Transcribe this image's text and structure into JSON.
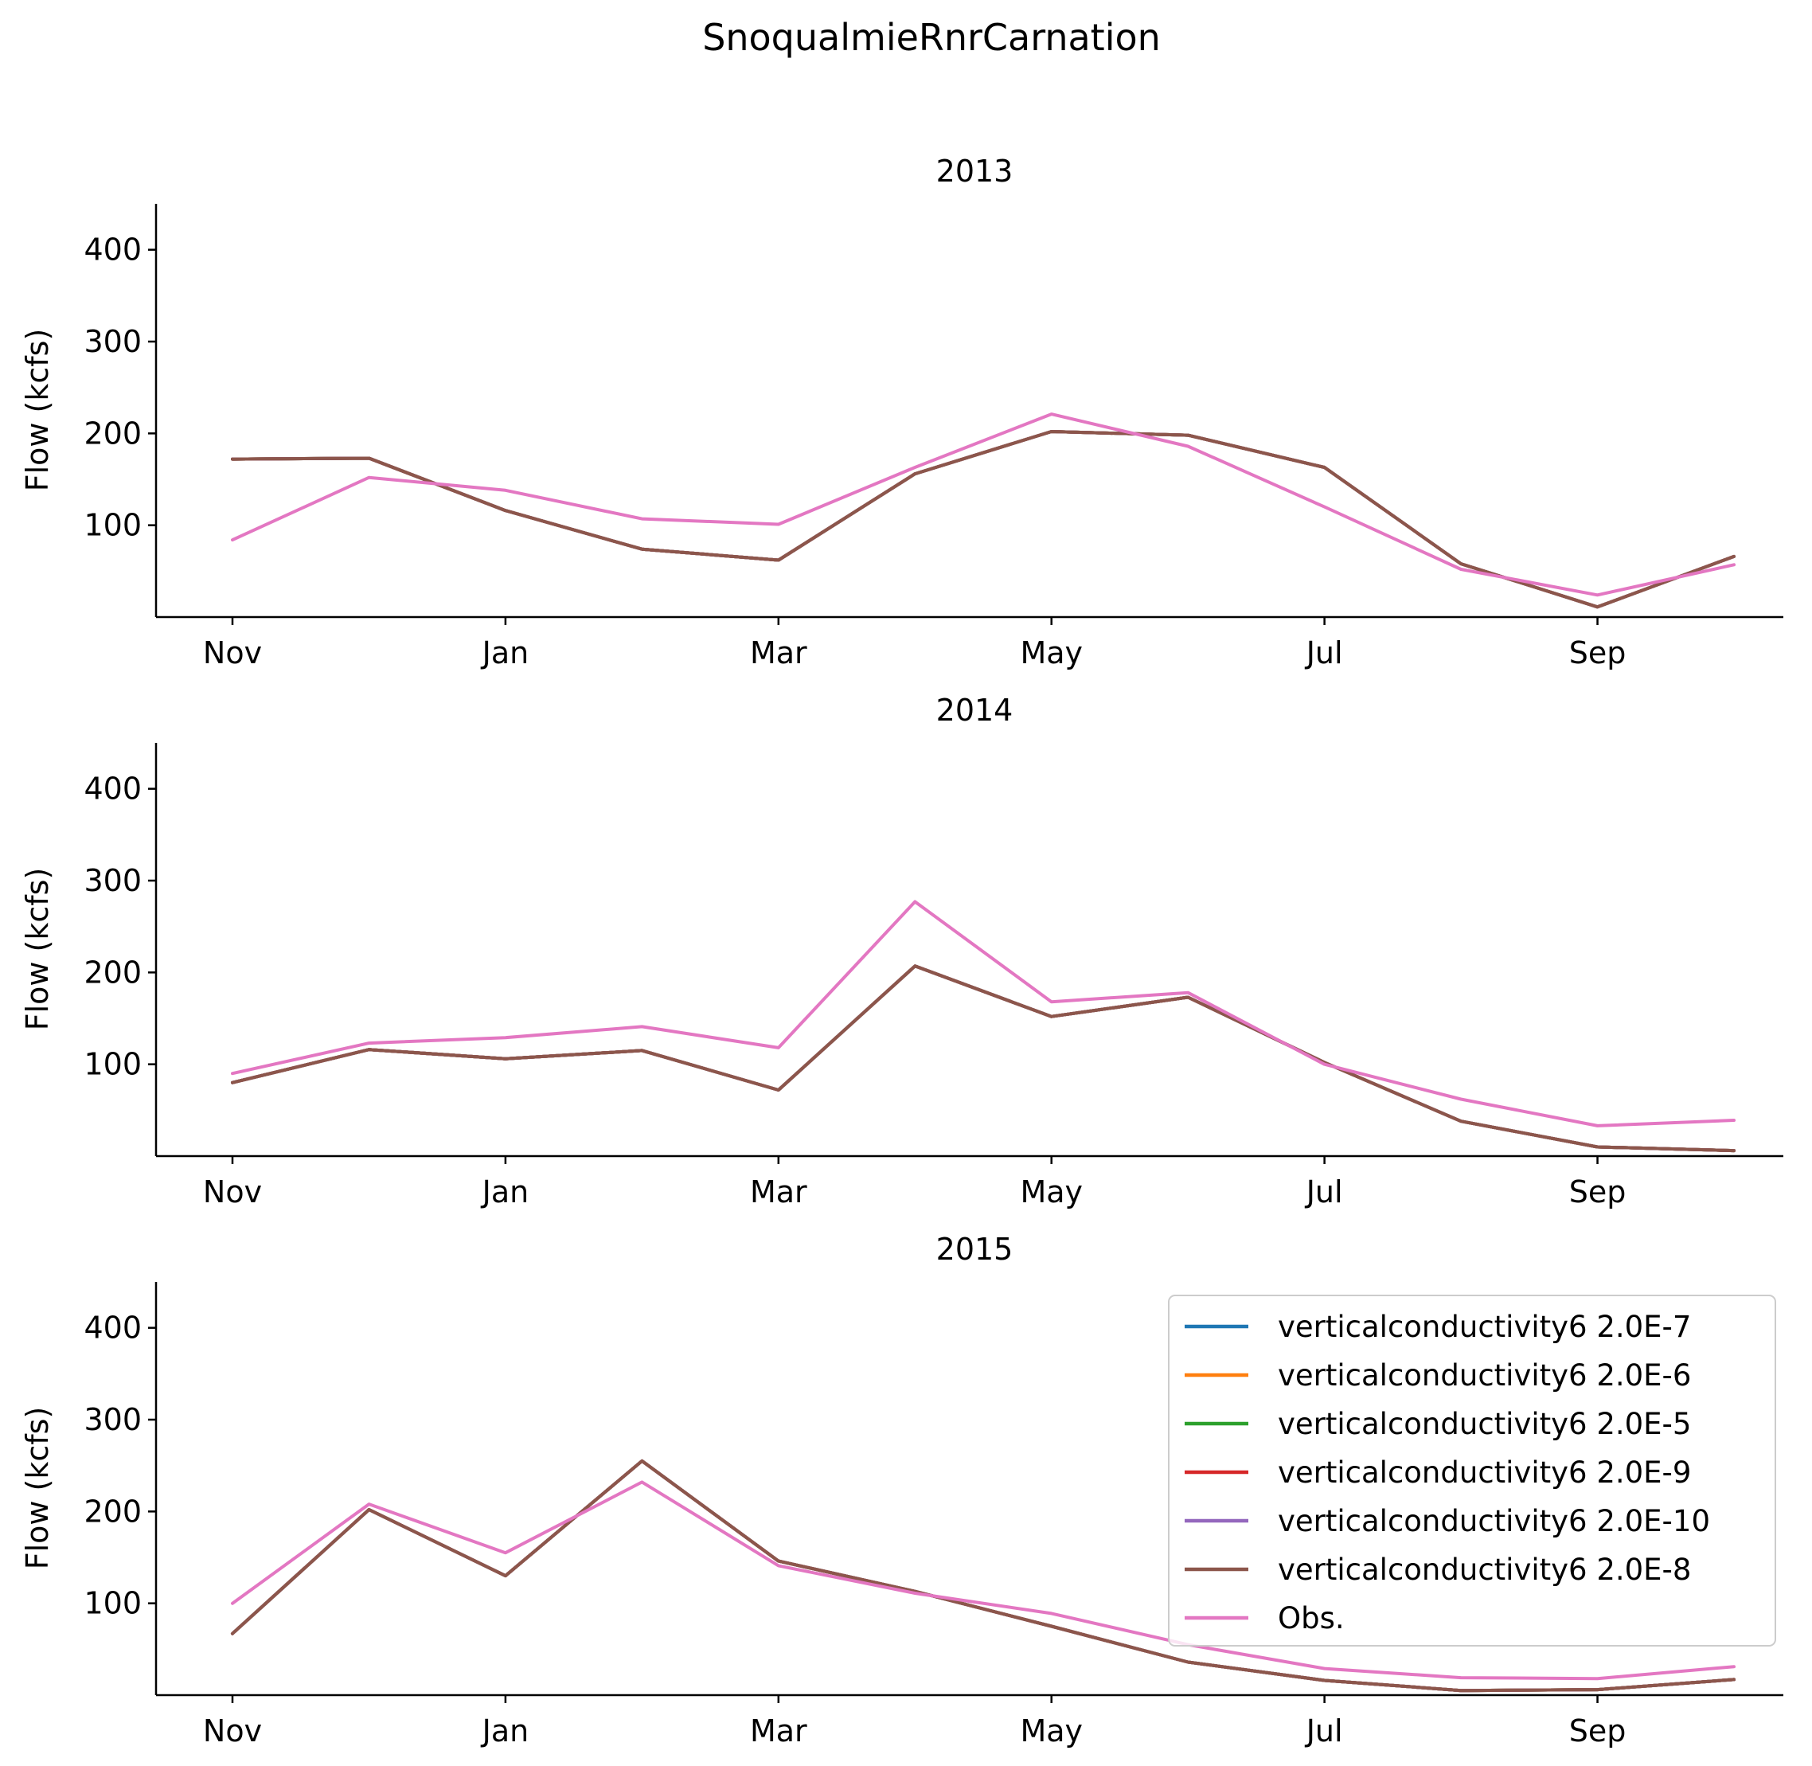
{
  "chart_data": {
    "title": "SnoqualmieRnrCarnation",
    "months": [
      "2012-11-01",
      "2012-12-01",
      "2013-01-01",
      "2013-02-01",
      "2013-03-01",
      "2013-04-01",
      "2013-05-01",
      "2013-06-01",
      "2013-07-01",
      "2013-08-01",
      "2013-09-01",
      "2013-10-01"
    ],
    "ylim": [
      0,
      450
    ],
    "yticks": [
      100,
      200,
      300,
      400
    ],
    "xticks": [
      "Nov",
      "Jan",
      "Mar",
      "May",
      "Jul",
      "Sep"
    ],
    "ylabel": "Flow (kcfs)",
    "legend": {
      "placement": "upper right",
      "entries": [
        {
          "name": "verticalconductivity6 2.0E-7",
          "color": "#1f77b4"
        },
        {
          "name": "verticalconductivity6 2.0E-6",
          "color": "#ff7f0e"
        },
        {
          "name": "verticalconductivity6 2.0E-5",
          "color": "#2ca02c"
        },
        {
          "name": "verticalconductivity6 2.0E-9",
          "color": "#d62728"
        },
        {
          "name": "verticalconductivity6 2.0E-10",
          "color": "#9467bd"
        },
        {
          "name": "verticalconductivity6 2.0E-8",
          "color": "#8c564b"
        },
        {
          "name": "Obs.",
          "color": "#e377c2"
        }
      ]
    },
    "panels": [
      {
        "title": "2013",
        "type": "line",
        "series": [
          {
            "name": "verticalconductivity6 2.0E-7",
            "color": "#1f77b4",
            "values": [
              172,
              173,
              116,
              74,
              62,
              156,
              202,
              198,
              163,
              58,
              11,
              66
            ]
          },
          {
            "name": "verticalconductivity6 2.0E-6",
            "color": "#ff7f0e",
            "values": [
              172,
              173,
              116,
              74,
              62,
              156,
              202,
              198,
              163,
              58,
              11,
              66
            ]
          },
          {
            "name": "verticalconductivity6 2.0E-5",
            "color": "#2ca02c",
            "values": [
              172,
              173,
              116,
              74,
              62,
              156,
              202,
              198,
              163,
              58,
              11,
              66
            ]
          },
          {
            "name": "verticalconductivity6 2.0E-9",
            "color": "#d62728",
            "values": [
              172,
              173,
              116,
              74,
              62,
              156,
              202,
              198,
              163,
              58,
              11,
              66
            ]
          },
          {
            "name": "verticalconductivity6 2.0E-10",
            "color": "#9467bd",
            "values": [
              172,
              173,
              116,
              74,
              62,
              156,
              202,
              198,
              163,
              58,
              11,
              66
            ]
          },
          {
            "name": "verticalconductivity6 2.0E-8",
            "color": "#8c564b",
            "values": [
              172,
              173,
              116,
              74,
              62,
              156,
              202,
              198,
              163,
              58,
              11,
              66
            ]
          },
          {
            "name": "Obs.",
            "color": "#e377c2",
            "values": [
              84,
              152,
              138,
              107,
              101,
              163,
              221,
              186,
              120,
              52,
              24,
              57
            ]
          }
        ]
      },
      {
        "title": "2014",
        "type": "line",
        "series": [
          {
            "name": "verticalconductivity6 2.0E-7",
            "color": "#1f77b4",
            "values": [
              80,
              116,
              106,
              115,
              72,
              207,
              152,
              173,
              102,
              38,
              10,
              6
            ]
          },
          {
            "name": "verticalconductivity6 2.0E-6",
            "color": "#ff7f0e",
            "values": [
              80,
              116,
              106,
              115,
              72,
              207,
              152,
              173,
              102,
              38,
              10,
              6
            ]
          },
          {
            "name": "verticalconductivity6 2.0E-5",
            "color": "#2ca02c",
            "values": [
              80,
              116,
              106,
              115,
              72,
              207,
              152,
              173,
              102,
              38,
              10,
              6
            ]
          },
          {
            "name": "verticalconductivity6 2.0E-9",
            "color": "#d62728",
            "values": [
              80,
              116,
              106,
              115,
              72,
              207,
              152,
              173,
              102,
              38,
              10,
              6
            ]
          },
          {
            "name": "verticalconductivity6 2.0E-10",
            "color": "#9467bd",
            "values": [
              80,
              116,
              106,
              115,
              72,
              207,
              152,
              173,
              102,
              38,
              10,
              6
            ]
          },
          {
            "name": "verticalconductivity6 2.0E-8",
            "color": "#8c564b",
            "values": [
              80,
              116,
              106,
              115,
              72,
              207,
              152,
              173,
              102,
              38,
              10,
              6
            ]
          },
          {
            "name": "Obs.",
            "color": "#e377c2",
            "values": [
              90,
              123,
              129,
              141,
              118,
              277,
              168,
              178,
              100,
              62,
              33,
              39
            ]
          }
        ]
      },
      {
        "title": "2015",
        "type": "line",
        "series": [
          {
            "name": "verticalconductivity6 2.0E-7",
            "color": "#1f77b4",
            "values": [
              67,
              202,
              130,
              255,
              146,
              113,
              75,
              36,
              16,
              5,
              6,
              17
            ]
          },
          {
            "name": "verticalconductivity6 2.0E-6",
            "color": "#ff7f0e",
            "values": [
              67,
              202,
              130,
              255,
              146,
              113,
              75,
              36,
              16,
              5,
              6,
              17
            ]
          },
          {
            "name": "verticalconductivity6 2.0E-5",
            "color": "#2ca02c",
            "values": [
              67,
              202,
              130,
              255,
              146,
              113,
              75,
              36,
              16,
              5,
              6,
              17
            ]
          },
          {
            "name": "verticalconductivity6 2.0E-9",
            "color": "#d62728",
            "values": [
              67,
              202,
              130,
              255,
              146,
              113,
              75,
              36,
              16,
              5,
              6,
              17
            ]
          },
          {
            "name": "verticalconductivity6 2.0E-10",
            "color": "#9467bd",
            "values": [
              67,
              202,
              130,
              255,
              146,
              113,
              75,
              36,
              16,
              5,
              6,
              17
            ]
          },
          {
            "name": "verticalconductivity6 2.0E-8",
            "color": "#8c564b",
            "values": [
              67,
              202,
              130,
              255,
              146,
              113,
              75,
              36,
              16,
              5,
              6,
              17
            ]
          },
          {
            "name": "Obs.",
            "color": "#e377c2",
            "values": [
              100,
              208,
              155,
              232,
              141,
              111,
              89,
              55,
              29,
              19,
              18,
              31
            ]
          }
        ]
      }
    ]
  }
}
